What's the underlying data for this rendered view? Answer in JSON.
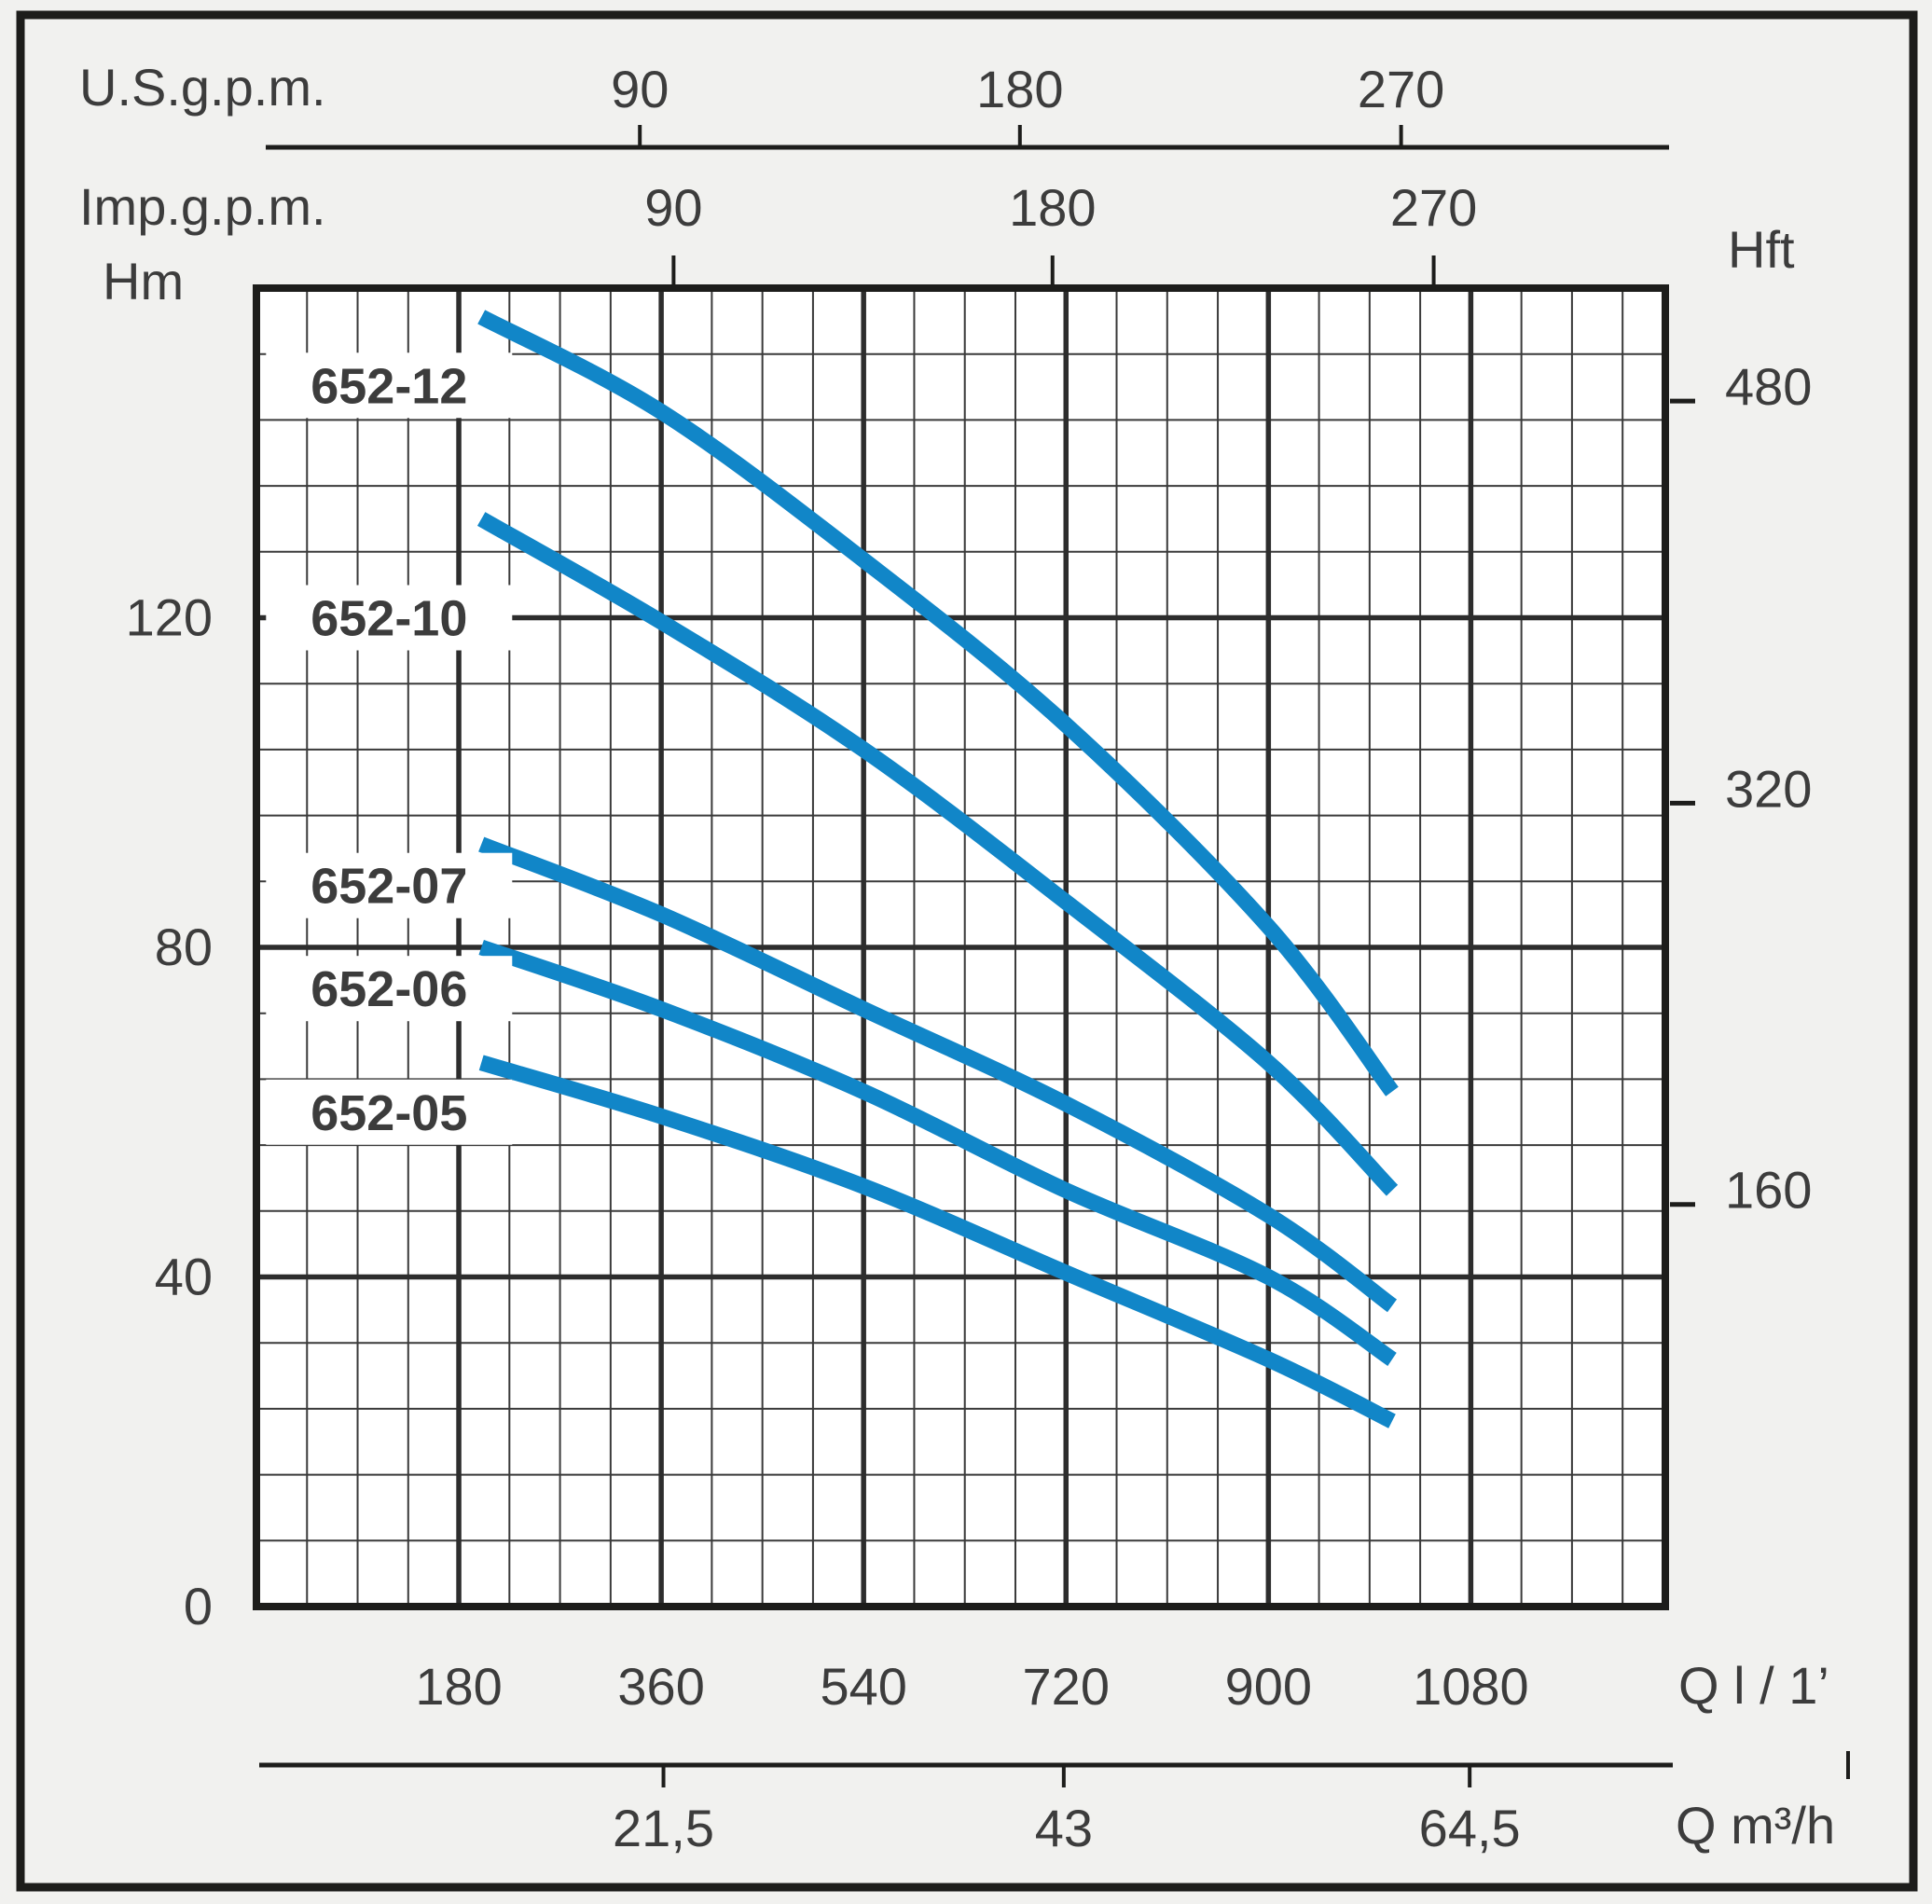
{
  "colors": {
    "page_bg": "#f1f1ef",
    "plot_bg": "#ffffff",
    "border": "#1d1d1b",
    "grid_minor": "#3a3a3a",
    "grid_major": "#2d2d2d",
    "text": "#3c3c3c",
    "curve": "#1186c8"
  },
  "labels": {
    "us_gpm_title": "U.S.g.p.m.",
    "imp_gpm_title": "Imp.g.p.m.",
    "hm_title": "Hm",
    "hft_title": "Hft",
    "q_lmin_title": "Q l / 1’",
    "q_m3h_title": "Q m³/h"
  },
  "chart_data": {
    "type": "line",
    "title": "Pump performance curves 652 series, head vs flow",
    "xlabel": "Q l / 1’",
    "ylabel": "Hm",
    "xlim": [
      0,
      1253
    ],
    "ylim": [
      0,
      160
    ],
    "x_minor_step": 45,
    "y_minor_step": 8,
    "x_major_ticks": [
      180,
      360,
      540,
      720,
      900,
      1080
    ],
    "y_major_ticks": [
      40,
      80,
      120
    ],
    "grid": "on",
    "legend_position": "inline-labels",
    "axes": {
      "top_usgpm": {
        "title": "U.S.g.p.m.",
        "ticks": [
          {
            "label": "90",
            "q": 341
          },
          {
            "label": "180",
            "q": 679
          },
          {
            "label": "270",
            "q": 1018
          }
        ]
      },
      "top_impgpm": {
        "title": "Imp.g.p.m.",
        "ticks": [
          {
            "label": "90",
            "q": 371
          },
          {
            "label": "180",
            "q": 708
          },
          {
            "label": "270",
            "q": 1047
          }
        ]
      },
      "left_hm": {
        "title": "Hm",
        "ticks": [
          {
            "label": "0",
            "hm": 0
          },
          {
            "label": "40",
            "hm": 40
          },
          {
            "label": "80",
            "hm": 80
          },
          {
            "label": "120",
            "hm": 120
          }
        ]
      },
      "right_hft": {
        "title": "Hft",
        "ticks": [
          {
            "label": "160",
            "hm": 48.8
          },
          {
            "label": "320",
            "hm": 97.5
          },
          {
            "label": "480",
            "hm": 146.3
          }
        ]
      },
      "bottom_lmin": {
        "title": "Q l / 1’",
        "ticks": [
          {
            "label": "180",
            "q": 180
          },
          {
            "label": "360",
            "q": 360
          },
          {
            "label": "540",
            "q": 540
          },
          {
            "label": "720",
            "q": 720
          },
          {
            "label": "900",
            "q": 900
          },
          {
            "label": "1080",
            "q": 1080
          }
        ]
      },
      "bottom_m3h": {
        "title": "Q m³/h",
        "ticks": [
          {
            "label": "21,5",
            "q": 362
          },
          {
            "label": "43",
            "q": 718
          },
          {
            "label": "64,5",
            "q": 1079
          }
        ]
      }
    },
    "series": [
      {
        "name": "652-12",
        "label_pos": {
          "q": 118,
          "hm": 148.2
        },
        "points": [
          [
            200,
            156.5
          ],
          [
            360,
            145
          ],
          [
            540,
            127
          ],
          [
            720,
            107
          ],
          [
            900,
            82.5
          ],
          [
            1010,
            62.5
          ]
        ]
      },
      {
        "name": "652-10",
        "label_pos": {
          "q": 118,
          "hm": 120.0
        },
        "points": [
          [
            200,
            132
          ],
          [
            360,
            119.5
          ],
          [
            540,
            104
          ],
          [
            720,
            85.5
          ],
          [
            900,
            66
          ],
          [
            1010,
            50.5
          ]
        ]
      },
      {
        "name": "652-07",
        "label_pos": {
          "q": 118,
          "hm": 87.5
        },
        "points": [
          [
            200,
            92.5
          ],
          [
            360,
            84
          ],
          [
            540,
            72.5
          ],
          [
            720,
            61
          ],
          [
            900,
            47.5
          ],
          [
            1010,
            36.5
          ]
        ]
      },
      {
        "name": "652-06",
        "label_pos": {
          "q": 118,
          "hm": 75.0
        },
        "points": [
          [
            200,
            80
          ],
          [
            360,
            72.5
          ],
          [
            540,
            62.5
          ],
          [
            720,
            50.5
          ],
          [
            900,
            40
          ],
          [
            1010,
            30
          ]
        ]
      },
      {
        "name": "652-05",
        "label_pos": {
          "q": 118,
          "hm": 60.0
        },
        "points": [
          [
            200,
            66
          ],
          [
            360,
            59.5
          ],
          [
            540,
            51
          ],
          [
            720,
            40.5
          ],
          [
            900,
            30
          ],
          [
            1010,
            22.5
          ]
        ]
      }
    ]
  }
}
